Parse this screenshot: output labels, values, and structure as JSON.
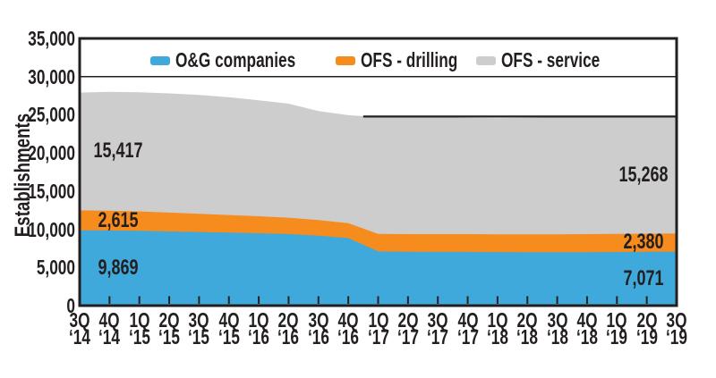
{
  "colors": {
    "ink": "#231F20",
    "background": "#ffffff",
    "blue": "#3FA9DC",
    "orange": "#F68B1E",
    "gray": "#CDCDCD"
  },
  "chart_data": {
    "type": "area",
    "stacked": true,
    "title": "",
    "xlabel": "",
    "ylabel": "Establishments",
    "ylim": [
      0,
      35000
    ],
    "ytick_step": 5000,
    "ytick_labels": [
      "0",
      "5,000",
      "10,000",
      "15,000",
      "20,000",
      "25,000",
      "30,000",
      "35,000"
    ],
    "grid_lines": [
      30000
    ],
    "legend_position": "top-inside",
    "categories": [
      "3Q ‘14",
      "4Q ‘14",
      "1Q ‘15",
      "2Q ‘15",
      "3Q ‘15",
      "4Q ‘15",
      "1Q ‘16",
      "2Q ‘16",
      "3Q ‘16",
      "4Q ‘16",
      "1Q ‘17",
      "2Q ‘17",
      "3Q ‘17",
      "4Q ‘17",
      "1Q ‘18",
      "2Q ‘18",
      "3Q ‘18",
      "4Q ‘18",
      "1Q ‘19",
      "2Q ‘19",
      "3Q ‘19"
    ],
    "series": [
      {
        "name": "O&G companies",
        "color": "#3FA9DC",
        "values": [
          9869,
          9850,
          9800,
          9720,
          9640,
          9560,
          9480,
          9380,
          9150,
          8850,
          7100,
          7060,
          7040,
          7030,
          7010,
          7000,
          6990,
          7000,
          7020,
          7045,
          7071
        ]
      },
      {
        "name": "OFS - drilling",
        "color": "#F68B1E",
        "values": [
          2615,
          2590,
          2540,
          2470,
          2390,
          2310,
          2230,
          2140,
          2050,
          1960,
          2300,
          2310,
          2320,
          2330,
          2330,
          2340,
          2350,
          2360,
          2370,
          2375,
          2380
        ]
      },
      {
        "name": "OFS - service",
        "color": "#CDCDCD",
        "values": [
          15417,
          15560,
          15610,
          15610,
          15570,
          15430,
          15190,
          14930,
          14300,
          14140,
          15300,
          15350,
          15340,
          15240,
          15210,
          15260,
          15340,
          15360,
          15350,
          15310,
          15268
        ]
      }
    ],
    "callouts": [
      {
        "series_index": 0,
        "anchor": "start",
        "text": "9,869"
      },
      {
        "series_index": 1,
        "anchor": "start",
        "text": "2,615"
      },
      {
        "series_index": 2,
        "anchor": "start",
        "text": "15,417"
      },
      {
        "series_index": 0,
        "anchor": "end",
        "text": "7,071"
      },
      {
        "series_index": 1,
        "anchor": "end",
        "text": "2,380"
      },
      {
        "series_index": 2,
        "anchor": "end",
        "text": "15,268"
      }
    ],
    "reference_line": {
      "value": 24770,
      "from_category_index": 9.5,
      "to_category_index": 20
    }
  }
}
